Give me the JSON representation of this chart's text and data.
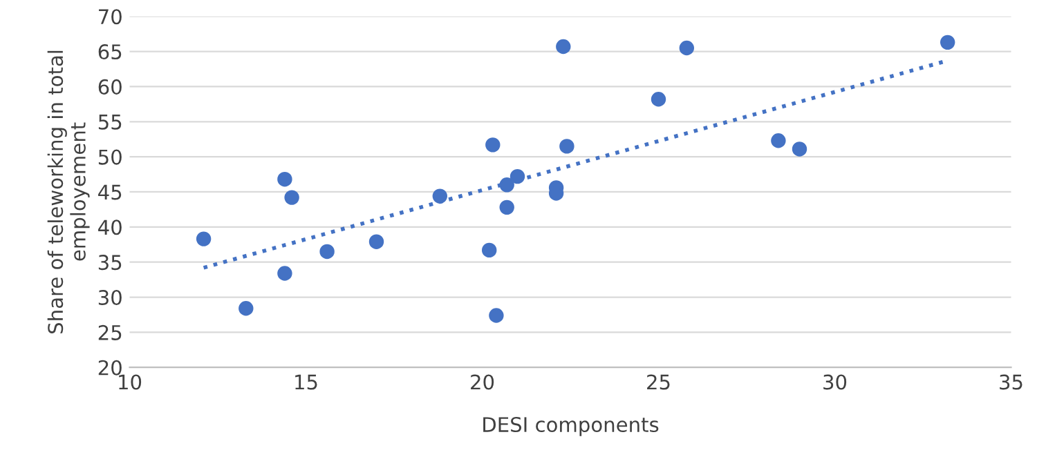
{
  "chart_data": {
    "type": "scatter",
    "xlabel": "DESI components",
    "ylabel": "Share of teleworking in total employement",
    "xlim": [
      10,
      35
    ],
    "xticks": [
      10,
      15,
      20,
      25,
      30,
      35
    ],
    "ylim": [
      20,
      70
    ],
    "yticks": [
      20,
      25,
      30,
      35,
      40,
      45,
      50,
      55,
      60,
      65,
      70
    ],
    "grid": "y",
    "series": [
      {
        "color": "#4472c4",
        "marker": "circle",
        "x": [
          12.1,
          13.3,
          14.4,
          14.4,
          14.6,
          15.6,
          17.0,
          18.8,
          20.2,
          20.3,
          20.4,
          20.7,
          20.7,
          21.0,
          22.1,
          22.1,
          22.3,
          22.4,
          25.0,
          25.8,
          28.4,
          29.0,
          33.2
        ],
        "values": [
          38.3,
          28.4,
          33.4,
          46.8,
          44.2,
          36.5,
          37.9,
          44.4,
          36.7,
          51.7,
          27.4,
          42.8,
          46.0,
          47.2,
          45.6,
          44.8,
          65.7,
          51.5,
          58.2,
          65.5,
          52.3,
          51.1,
          66.3
        ]
      },
      {
        "type": "line",
        "color": "#4472c4",
        "line_style": "dotted",
        "marker": "none",
        "x": [
          12.1,
          33.2
        ],
        "values": [
          34.2,
          63.7
        ]
      }
    ]
  }
}
